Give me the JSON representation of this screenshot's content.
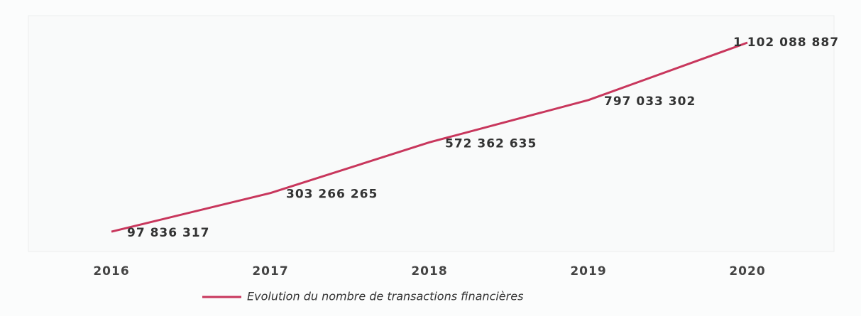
{
  "chart_data": {
    "type": "line",
    "categories": [
      "2016",
      "2017",
      "2018",
      "2019",
      "2020"
    ],
    "series": [
      {
        "name": "Evolution du nombre de transactions financières",
        "color": "#c8365c",
        "values": [
          97836317,
          303266265,
          572362635,
          797033302,
          1102088887
        ],
        "value_labels": [
          "97 836 317",
          "303 266 265",
          "572 362 635",
          "797 033 302",
          "1 102 088 887"
        ]
      }
    ],
    "legend": "bottom"
  }
}
